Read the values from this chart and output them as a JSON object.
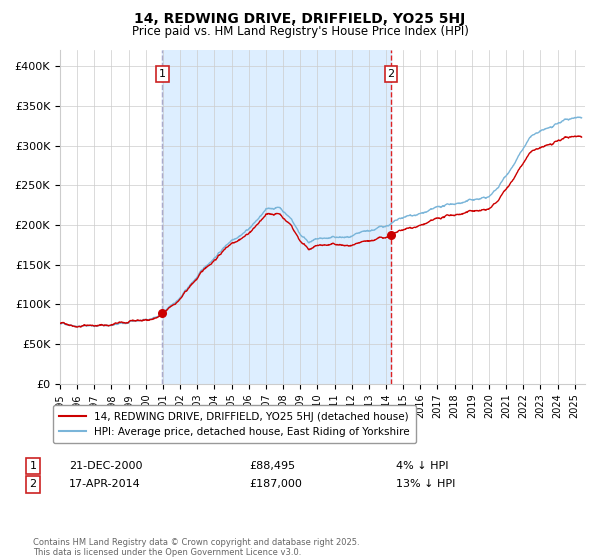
{
  "title": "14, REDWING DRIVE, DRIFFIELD, YO25 5HJ",
  "subtitle": "Price paid vs. HM Land Registry's House Price Index (HPI)",
  "legend_line1": "14, REDWING DRIVE, DRIFFIELD, YO25 5HJ (detached house)",
  "legend_line2": "HPI: Average price, detached house, East Riding of Yorkshire",
  "annotation1_label": "1",
  "annotation1_date": "21-DEC-2000",
  "annotation1_price": "£88,495",
  "annotation1_hpi": "4% ↓ HPI",
  "annotation2_label": "2",
  "annotation2_date": "17-APR-2014",
  "annotation2_price": "£187,000",
  "annotation2_hpi": "13% ↓ HPI",
  "footnote": "Contains HM Land Registry data © Crown copyright and database right 2025.\nThis data is licensed under the Open Government Licence v3.0.",
  "ylim": [
    0,
    420000
  ],
  "yticks": [
    0,
    50000,
    100000,
    150000,
    200000,
    250000,
    300000,
    350000,
    400000
  ],
  "ytick_labels": [
    "£0",
    "£50K",
    "£100K",
    "£150K",
    "£200K",
    "£250K",
    "£300K",
    "£350K",
    "£400K"
  ],
  "hpi_color": "#7ab5d9",
  "price_color": "#cc0000",
  "purchase1_year": 2000.97,
  "purchase1_price": 88495,
  "purchase2_year": 2014.29,
  "purchase2_price": 187000,
  "vline1_color": "#aaaacc",
  "vline2_color": "#dd2222",
  "shade_color": "#ddeeff",
  "grid_color": "#cccccc",
  "background_color": "#ffffff",
  "ann_box_color": "#cc2222"
}
